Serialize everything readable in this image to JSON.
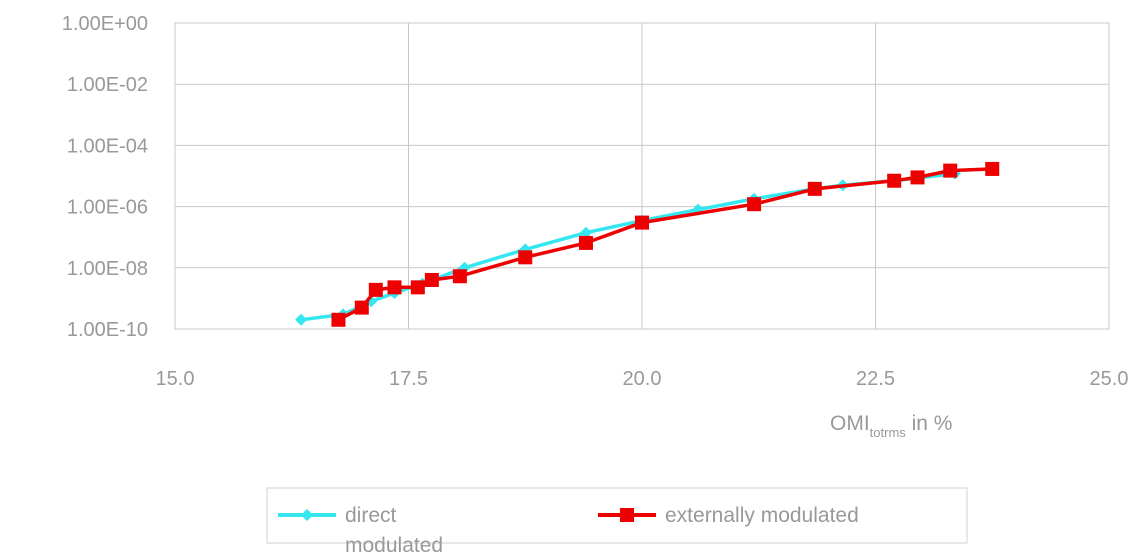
{
  "chart_data": {
    "type": "line",
    "title": "",
    "xlabel": {
      "main": "OMI",
      "sub": "totrms",
      "suffix": " in %"
    },
    "ylabel": "",
    "x_ticks": [
      "15.0",
      "17.5",
      "20.0",
      "22.5",
      "25.0"
    ],
    "y_ticks": [
      "1.00E+00",
      "1.00E-02",
      "1.00E-04",
      "1.00E-06",
      "1.00E-08",
      "1.00E-10"
    ],
    "xlim": [
      15.0,
      25.0
    ],
    "ylim": [
      1e-10,
      1
    ],
    "y_scale": "log",
    "grid": true,
    "legend_position": "bottom",
    "series": [
      {
        "name": "direct modulated",
        "color": "#33e6f0",
        "marker": "diamond",
        "x": [
          16.35,
          16.8,
          17.1,
          17.35,
          17.65,
          18.1,
          18.75,
          19.4,
          20.0,
          20.6,
          21.2,
          21.85,
          22.15,
          22.7,
          23.35
        ],
        "y": [
          2e-10,
          3e-10,
          8e-10,
          1.5e-09,
          3e-09,
          1e-08,
          4e-08,
          1.4e-07,
          3.5e-07,
          8e-07,
          1.8e-06,
          3.8e-06,
          5e-06,
          7e-06,
          1.2e-05
        ]
      },
      {
        "name": "externally modulated",
        "color": "#ee0000",
        "marker": "square",
        "x": [
          16.75,
          17.0,
          17.15,
          17.35,
          17.6,
          17.75,
          18.05,
          18.75,
          19.4,
          20.0,
          21.2,
          21.85,
          22.7,
          22.95,
          23.3,
          23.75
        ],
        "y": [
          2e-10,
          5e-10,
          1.9e-09,
          2.3e-09,
          2.3e-09,
          4e-09,
          5.3e-09,
          2.2e-08,
          6.5e-08,
          3e-07,
          1.2e-06,
          3.8e-06,
          7e-06,
          9e-06,
          1.5e-05,
          1.7e-05
        ]
      }
    ]
  }
}
